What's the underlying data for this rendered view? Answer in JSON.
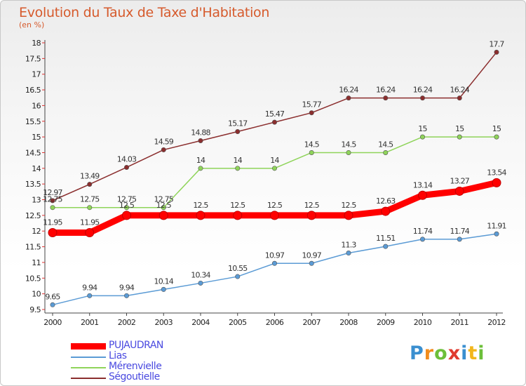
{
  "header": {
    "title": "Evolution du Taux de Taxe d'Habitation",
    "subtitle": "(en %)"
  },
  "chart_data": {
    "type": "line",
    "title": "Evolution du Taux de Taxe d'Habitation",
    "ylabel": "(en %)",
    "xlabel": "",
    "x": [
      "2000",
      "2001",
      "2002",
      "2003",
      "2004",
      "2005",
      "2006",
      "2007",
      "2008",
      "2009",
      "2010",
      "2011",
      "2012"
    ],
    "ylim": [
      9.5,
      18
    ],
    "yticks": [
      "9.5",
      "10",
      "10.5",
      "11",
      "11.5",
      "12",
      "12.5",
      "13",
      "13.5",
      "14",
      "14.5",
      "15",
      "15.5",
      "16",
      "16.5",
      "17",
      "17.5",
      "18"
    ],
    "grid": false,
    "legend_position": "bottom-left",
    "series": [
      {
        "name": "Ségoutielle",
        "color": "#8b2e2e",
        "values": [
          12.97,
          13.49,
          14.03,
          14.59,
          14.88,
          15.17,
          15.47,
          15.77,
          16.24,
          16.24,
          16.24,
          16.24,
          17.7
        ],
        "labels": [
          "12.97",
          "13.49",
          "14.03",
          "14.59",
          "14.88",
          "15.17",
          "15.47",
          "15.77",
          "16.24",
          "16.24",
          "16.24",
          "16.24",
          "17.7"
        ]
      },
      {
        "name": "Mérenvielle",
        "color": "#8fd45a",
        "values": [
          12.75,
          12.75,
          12.75,
          12.75,
          14,
          14,
          14,
          14.5,
          14.5,
          14.5,
          15,
          15,
          15
        ],
        "labels": [
          "12.75",
          "12.75",
          "12.75",
          "12.75",
          "14",
          "14",
          "14",
          "14.5",
          "14.5",
          "14.5",
          "15",
          "15",
          "15"
        ]
      },
      {
        "name": "PUJAUDRAN",
        "color": "#ff0000",
        "values": [
          11.95,
          11.95,
          12.5,
          12.5,
          12.5,
          12.5,
          12.5,
          12.5,
          12.5,
          12.63,
          13.14,
          13.27,
          13.54
        ],
        "labels": [
          "11.95",
          "11.95",
          "12.5",
          "12.5",
          "12.5",
          "12.5",
          "12.5",
          "12.5",
          "12.5",
          "12.63",
          "13.14",
          "13.27",
          "13.54"
        ]
      },
      {
        "name": "Lias",
        "color": "#5b9bd5",
        "values": [
          9.65,
          9.94,
          9.94,
          10.14,
          10.34,
          10.55,
          10.97,
          10.97,
          11.3,
          11.51,
          11.74,
          11.74,
          11.91
        ],
        "labels": [
          "9.65",
          "9.94",
          "9.94",
          "10.14",
          "10.34",
          "10.55",
          "10.97",
          "10.97",
          "11.3",
          "11.51",
          "11.74",
          "11.74",
          "11.91"
        ]
      }
    ]
  },
  "legend": {
    "items": [
      {
        "label": "PUJAUDRAN",
        "color": "#ff0000"
      },
      {
        "label": "Lias",
        "color": "#5b9bd5"
      },
      {
        "label": "Mérenvielle",
        "color": "#8fd45a"
      },
      {
        "label": "Ségoutielle",
        "color": "#8b2e2e"
      }
    ]
  },
  "logo": {
    "text": "Proxiti",
    "letters": [
      {
        "ch": "P",
        "color": "#3a8fd0"
      },
      {
        "ch": "r",
        "color": "#f28c1c"
      },
      {
        "ch": "o",
        "color": "#6cbf3a"
      },
      {
        "ch": "x",
        "color": "#e03a2e"
      },
      {
        "ch": "i",
        "color": "#3a8fd0"
      },
      {
        "ch": "t",
        "color": "#f2b61c"
      },
      {
        "ch": "i",
        "color": "#6cbf3a"
      }
    ]
  }
}
